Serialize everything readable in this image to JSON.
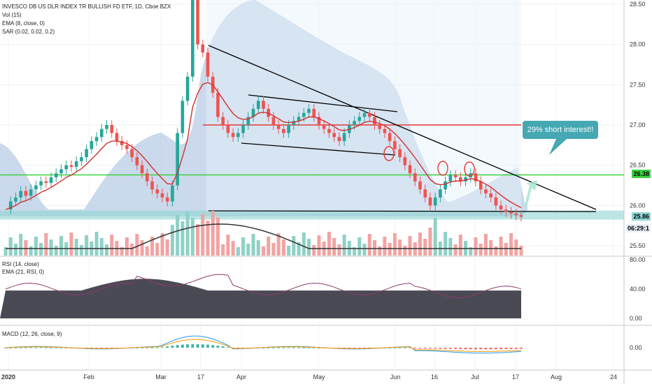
{
  "header": {
    "title": "INVESCO DB US DLR INDEX TR BULLISH FD ETF, 1D, Cboe BZX",
    "vol": "Vol (15)",
    "ema": "EMA (8, close, 0)",
    "sar": "SAR (0.02, 0.02, 0.2)"
  },
  "annotation": {
    "text": "29% short interest!!"
  },
  "price_tags": {
    "green_level": "26.38",
    "last_price": "25.86",
    "countdown": "06:29:1"
  },
  "rsi_panel": {
    "label": "RSI (14, close)",
    "ema_label": "EMA (21, RSI, 0)"
  },
  "macd_panel": {
    "label": "MACD (12, 26, close, 9)"
  },
  "colors": {
    "up": "#26a69a",
    "down": "#ef5350",
    "accent": "#45a8b2"
  },
  "chart_data": {
    "type": "line",
    "x_axis": {
      "labels": [
        "2020",
        "Feb",
        "Mar",
        "17",
        "Apr",
        "May",
        "Jun",
        "16",
        "Jul",
        "17",
        "Aug",
        "24"
      ]
    },
    "price_axis": {
      "labels": [
        "28.50",
        "28.00",
        "27.50",
        "27.00",
        "26.50",
        "26.00",
        "25.50"
      ],
      "range": [
        25.3,
        28.55
      ]
    },
    "rsi_axis": {
      "labels": [
        "80.00",
        "40.00",
        "0.00"
      ]
    },
    "macd_axis": {
      "labels": [
        "0.00"
      ]
    },
    "levels": {
      "red_resistance": 27.0,
      "green_resistance": 26.38,
      "support_zone": [
        25.86,
        25.92
      ]
    },
    "close_series": [
      25.95,
      26.05,
      26.1,
      26.18,
      26.12,
      26.2,
      26.25,
      26.3,
      26.28,
      26.35,
      26.4,
      26.45,
      26.5,
      26.48,
      26.55,
      26.6,
      26.7,
      26.8,
      26.85,
      26.95,
      27.0,
      26.9,
      26.8,
      26.75,
      26.7,
      26.6,
      26.5,
      26.4,
      26.3,
      26.2,
      26.15,
      26.1,
      26.05,
      26.25,
      26.9,
      27.3,
      27.6,
      28.6,
      28.0,
      27.9,
      27.6,
      27.4,
      27.1,
      27.0,
      26.9,
      26.85,
      26.9,
      27.0,
      27.1,
      27.2,
      27.3,
      27.2,
      27.1,
      27.0,
      26.95,
      26.9,
      27.0,
      27.05,
      27.1,
      27.15,
      27.2,
      27.1,
      27.0,
      26.95,
      26.9,
      26.85,
      26.8,
      26.9,
      27.0,
      27.05,
      27.1,
      27.15,
      27.1,
      27.0,
      26.95,
      26.9,
      26.8,
      26.7,
      26.6,
      26.5,
      26.4,
      26.3,
      26.2,
      26.1,
      26.0,
      26.1,
      26.2,
      26.3,
      26.38,
      26.35,
      26.3,
      26.35,
      26.4,
      26.3,
      26.2,
      26.15,
      26.1,
      26.0,
      25.95,
      25.92,
      25.9,
      25.88,
      25.86
    ]
  }
}
